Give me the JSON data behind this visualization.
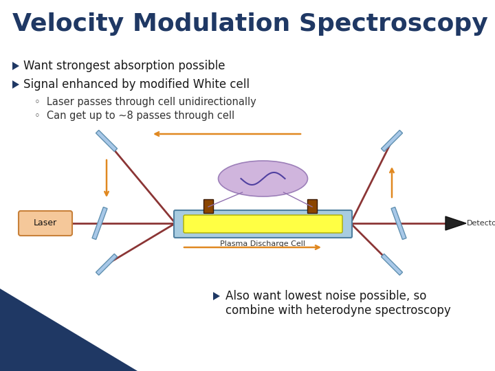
{
  "title": "Velocity Modulation Spectroscopy",
  "title_color": "#1F3864",
  "title_fontsize": 26,
  "bullet1": "Want strongest absorption possible",
  "bullet2": "Signal enhanced by modified White cell",
  "sub1": "Laser passes through cell unidirectionally",
  "sub2": "Can get up to ~8 passes through cell",
  "bullet3_line1": "Also want lowest noise possible, so",
  "bullet3_line2": "combine with heterodyne spectroscopy",
  "text_color": "#1a1a1a",
  "bullet_color": "#1F3864",
  "sub_color": "#333333",
  "bg_color": "#ffffff",
  "corner_bg": "#1F3864",
  "laser_box_color": "#F5C89A",
  "laser_box_edge": "#C8813A",
  "beam_color": "#8B3535",
  "electrode_color": "#8B4500",
  "mirror_color": "#A8C8E8",
  "mirror_edge": "#6090B0",
  "arrow_orange": "#E08820",
  "detector_color": "#222222",
  "cell_outer_color": "#A8CCE0",
  "cell_inner_color": "#FFFF44",
  "cell_edge_color": "#5080A0",
  "sine_bg": "#C8A8D8",
  "sine_line": "#5040A0",
  "sine_edge": "#9070B0"
}
